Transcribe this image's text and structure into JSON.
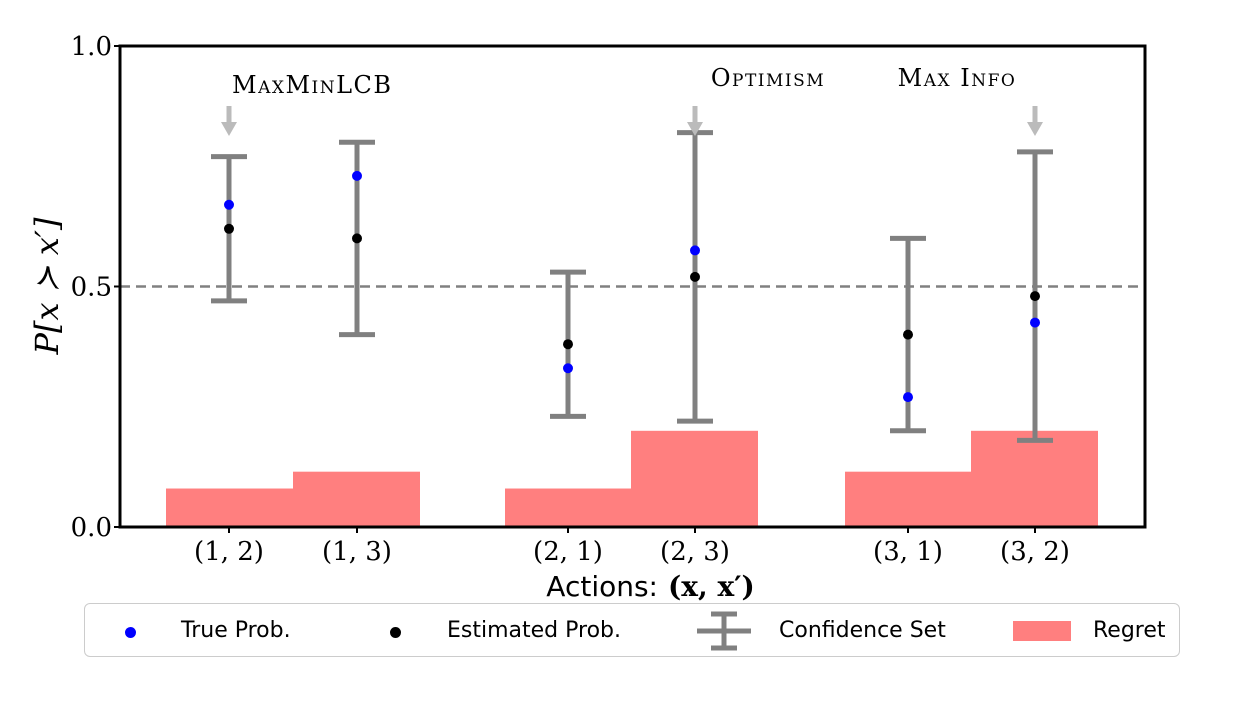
{
  "chart_data": {
    "type": "bar",
    "ylabel": "P[x ≻ x′]",
    "xlabel_text": "Actions:",
    "xlabel_math": "(x, x′)",
    "ylim": [
      0.0,
      1.0
    ],
    "yticks": [
      "0.0",
      "0.5",
      "1.0"
    ],
    "reference_line": 0.5,
    "categories": [
      "(1, 2)",
      "(1, 3)",
      "(2, 1)",
      "(2, 3)",
      "(3, 1)",
      "(3, 2)"
    ],
    "series": [
      {
        "name": "True Prob.",
        "values": [
          0.67,
          0.73,
          0.33,
          0.575,
          0.27,
          0.425
        ],
        "color": "#0000ff"
      },
      {
        "name": "Estimated Prob.",
        "values": [
          0.62,
          0.6,
          0.38,
          0.52,
          0.4,
          0.48
        ],
        "color": "#000000"
      },
      {
        "name": "Confidence Set",
        "lower": [
          0.47,
          0.4,
          0.23,
          0.22,
          0.2,
          0.18
        ],
        "upper": [
          0.77,
          0.8,
          0.53,
          0.82,
          0.6,
          0.78
        ],
        "color": "#808080"
      },
      {
        "name": "Regret",
        "values": [
          0.08,
          0.115,
          0.08,
          0.2,
          0.115,
          0.2
        ],
        "color": "#ff7f7f"
      }
    ],
    "annotations": [
      {
        "text": "MaxMinLCB",
        "category": "(1, 2)"
      },
      {
        "text": "Optimism",
        "category": "(2, 3)"
      },
      {
        "text": "Max Info",
        "category": "(3, 2)"
      }
    ],
    "legend_position": "bottom"
  }
}
